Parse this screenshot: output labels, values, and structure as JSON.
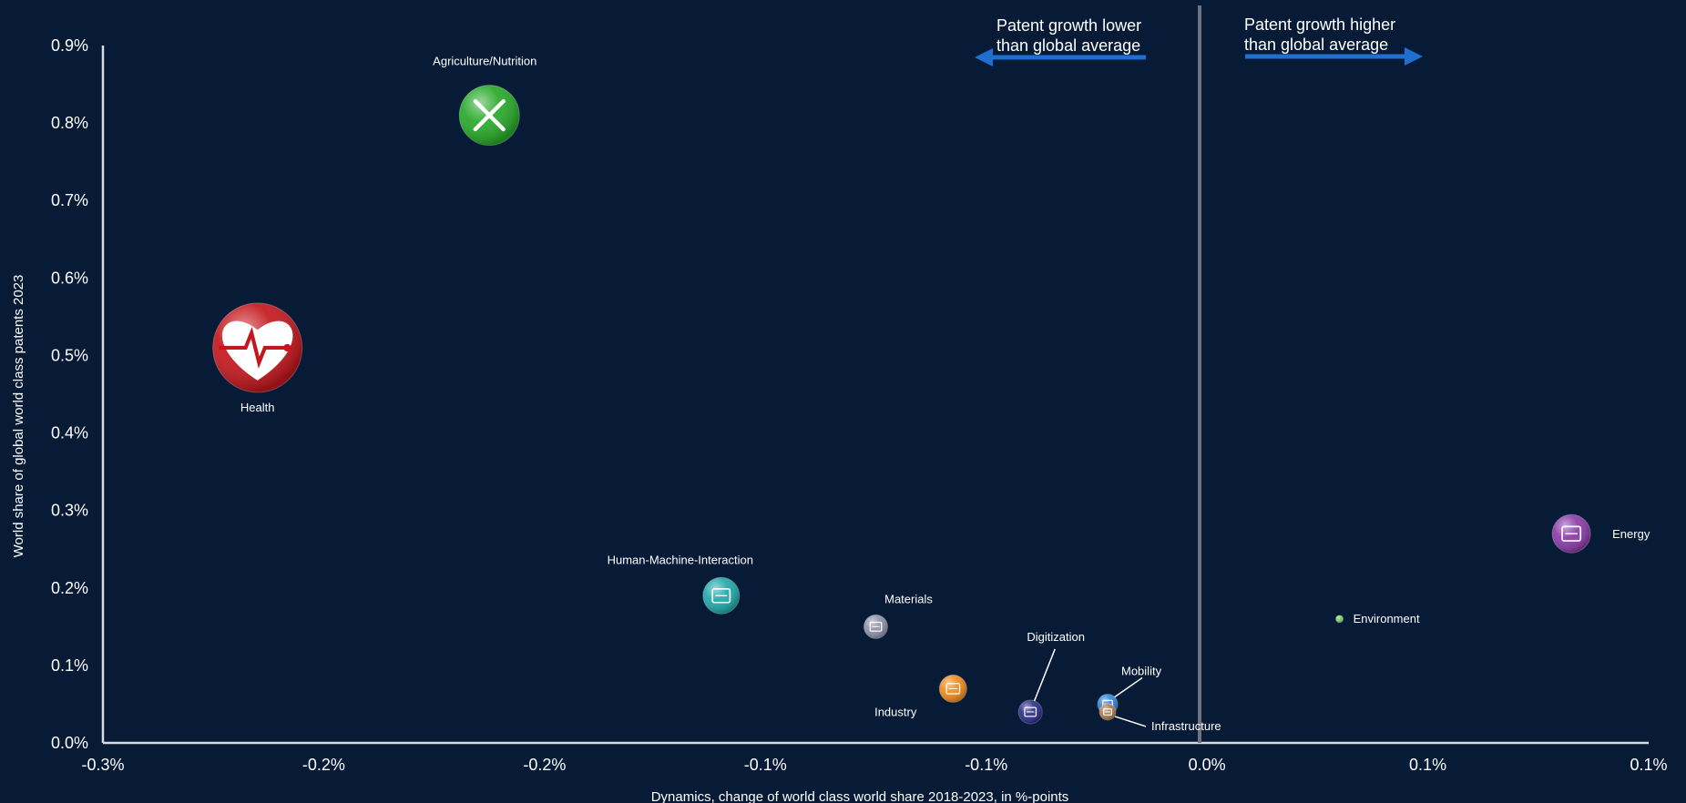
{
  "chart_data": {
    "type": "scatter",
    "title": "",
    "xlabel": "Dynamics, change of world class world share 2018-2023, in %-points",
    "ylabel": "World share of global world class patents 2023",
    "xlim": [
      -0.3,
      0.1
    ],
    "ylim": [
      0.0,
      0.9
    ],
    "x_tick_labels": [
      "-0.3%",
      "-0.2%",
      "-0.2%",
      "-0.1%",
      "-0.1%",
      "0.0%",
      "0.1%",
      "0.1%"
    ],
    "y_tick_labels": [
      "0.0%",
      "0.1%",
      "0.2%",
      "0.3%",
      "0.4%",
      "0.5%",
      "0.6%",
      "0.7%",
      "0.8%",
      "0.9%"
    ],
    "grid": false,
    "reference_line_x": 0.0,
    "annotations": {
      "left_note": [
        "Patent growth lower",
        "than global average"
      ],
      "right_note": [
        "Patent growth higher",
        "than global average"
      ]
    },
    "points": [
      {
        "label": "Health",
        "x": -0.26,
        "y": 0.51,
        "icon": "heart-pulse-icon",
        "color": "#c4161c"
      },
      {
        "label": "Agriculture/Nutrition",
        "x": -0.2,
        "y": 0.81,
        "icon": "fork-knife-icon",
        "color": "#27a828"
      },
      {
        "label": "Human-Machine-Interaction",
        "x": -0.14,
        "y": 0.19,
        "icon": "handshake-icon",
        "color": "#1fa8a8"
      },
      {
        "label": "Materials",
        "x": -0.1,
        "y": 0.15,
        "icon": "layers-icon",
        "color": "#8e93a6"
      },
      {
        "label": "Industry",
        "x": -0.08,
        "y": 0.07,
        "icon": "factory-icon",
        "color": "#f08a1c"
      },
      {
        "label": "Digitization",
        "x": -0.06,
        "y": 0.04,
        "icon": "chip-icon",
        "color": "#2b2f86"
      },
      {
        "label": "Mobility",
        "x": -0.04,
        "y": 0.05,
        "icon": "car-icon",
        "color": "#2f86d6"
      },
      {
        "label": "Infrastructure",
        "x": -0.04,
        "y": 0.04,
        "icon": "building-icon",
        "color": "#b07a4a"
      },
      {
        "label": "Environment",
        "x": 0.02,
        "y": 0.16,
        "icon": "leaf-icon",
        "color": "#7dcf6a"
      },
      {
        "label": "Energy",
        "x": 0.08,
        "y": 0.27,
        "icon": "power-plant-icon",
        "color": "#8a3aa8"
      }
    ]
  }
}
